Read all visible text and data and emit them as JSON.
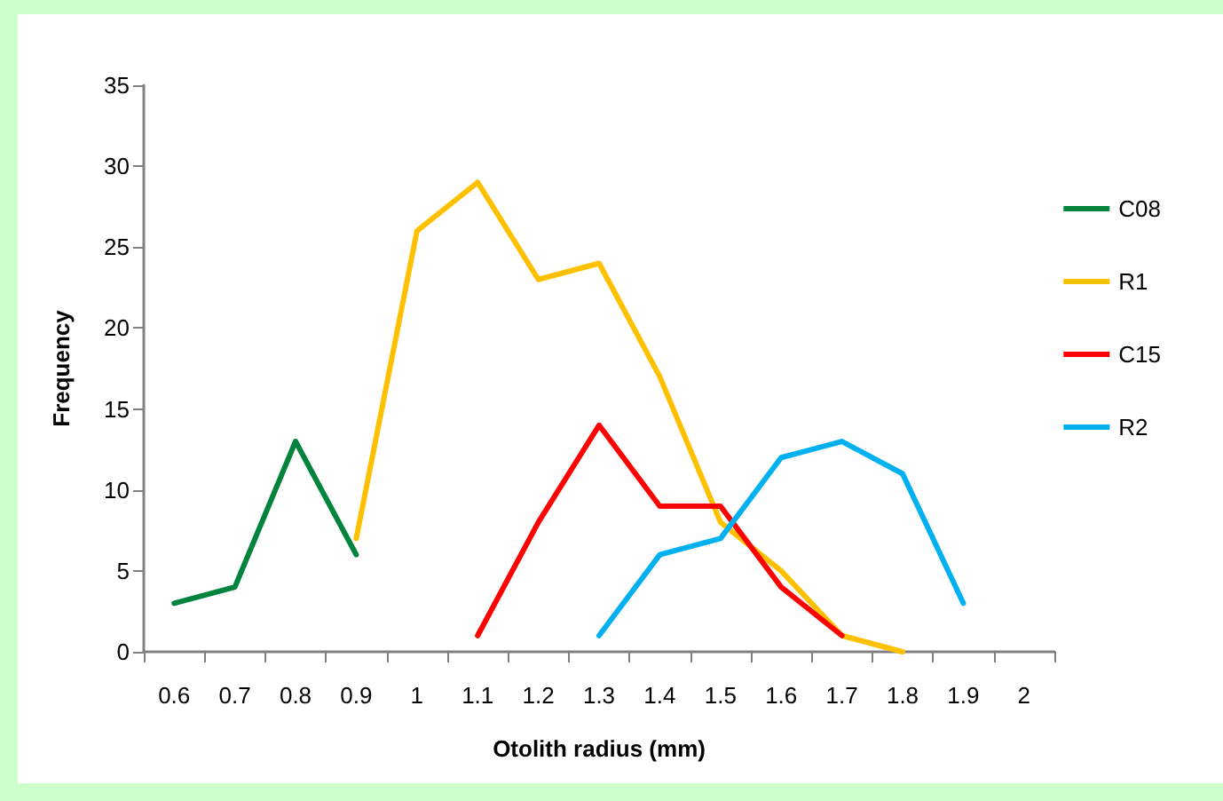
{
  "chart_data": {
    "type": "line",
    "xlabel": "Otolith radius (mm)",
    "ylabel": "Frequency",
    "categories": [
      "0.6",
      "0.7",
      "0.8",
      "0.9",
      "1",
      "1.1",
      "1.2",
      "1.3",
      "1.4",
      "1.5",
      "1.6",
      "1.7",
      "1.8",
      "1.9",
      "2"
    ],
    "series": [
      {
        "name": "C08",
        "color": "#00843d",
        "values": [
          3,
          4,
          13,
          6,
          null,
          null,
          null,
          null,
          null,
          null,
          null,
          null,
          null,
          null,
          null
        ]
      },
      {
        "name": "R1",
        "color": "#ffc000",
        "values": [
          null,
          null,
          null,
          7,
          26,
          29,
          23,
          24,
          17,
          8,
          5,
          1,
          0,
          null,
          null
        ]
      },
      {
        "name": "C15",
        "color": "#ff0000",
        "values": [
          null,
          null,
          null,
          null,
          null,
          1,
          8,
          14,
          9,
          9,
          4,
          1,
          null,
          null,
          null
        ]
      },
      {
        "name": "R2",
        "color": "#00b0f0",
        "values": [
          null,
          null,
          null,
          null,
          null,
          null,
          null,
          1,
          6,
          7,
          12,
          13,
          11,
          3,
          null
        ]
      }
    ],
    "ylim": [
      0,
      35
    ],
    "yticks": [
      0,
      5,
      10,
      15,
      20,
      25,
      30,
      35
    ],
    "grid": false,
    "legend": "right",
    "marker": "none",
    "line_style": "solid"
  }
}
